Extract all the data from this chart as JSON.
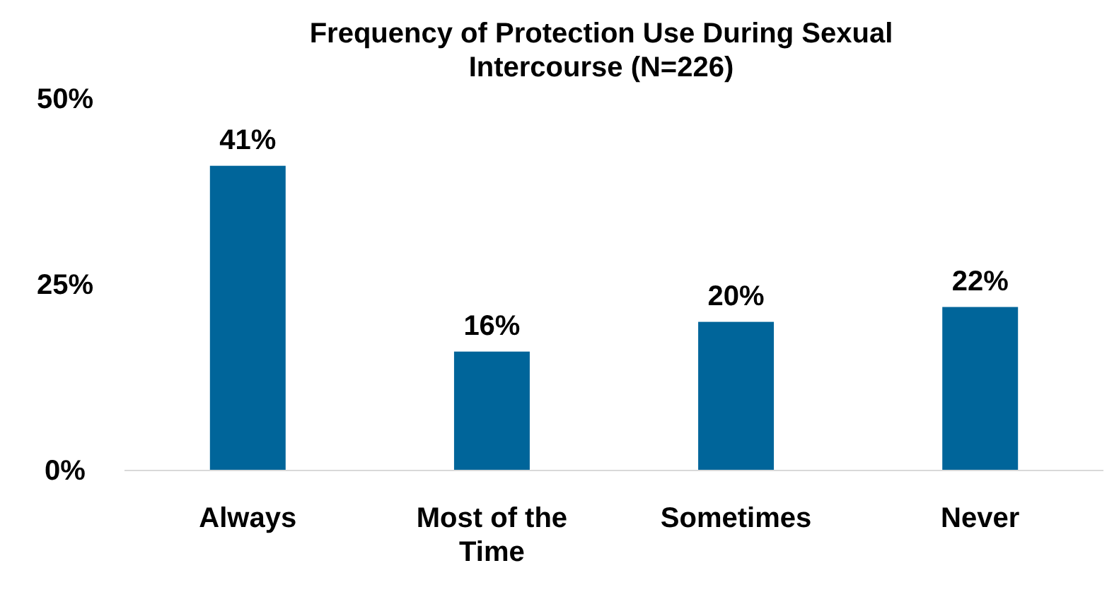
{
  "chart_data": {
    "type": "bar",
    "title": "Frequency of Protection Use During Sexual Intercourse (N=226)",
    "categories": [
      "Always",
      "Most of the Time",
      "Sometimes",
      "Never"
    ],
    "values": [
      41,
      16,
      20,
      22
    ],
    "value_labels": [
      "41%",
      "16%",
      "20%",
      "22%"
    ],
    "color": "#00659a",
    "ylim": [
      0,
      50
    ],
    "yticks": [
      {
        "value": 0,
        "label": "0%"
      },
      {
        "value": 25,
        "label": "25%"
      },
      {
        "value": 50,
        "label": "50%"
      }
    ],
    "grid": false
  }
}
